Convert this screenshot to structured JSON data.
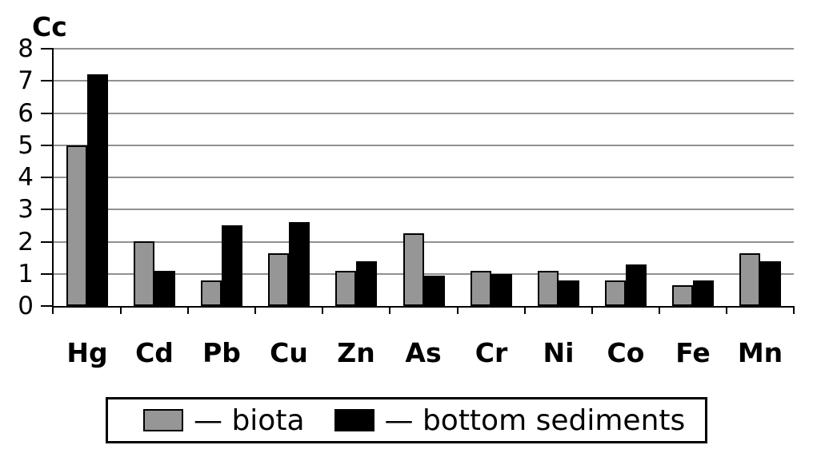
{
  "chart_data": {
    "type": "bar",
    "title": "Cc",
    "ylabel": "Cc",
    "xlabel": "",
    "ylim": [
      0,
      8
    ],
    "ytick_step": 1,
    "ytick_labels": [
      "0",
      "1",
      "2",
      "3",
      "4",
      "5",
      "6",
      "7",
      "8"
    ],
    "grid": "horizontal",
    "legend_position": "bottom",
    "categories": [
      "Hg",
      "Cd",
      "Pb",
      "Cu",
      "Zn",
      "As",
      "Cr",
      "Ni",
      "Co",
      "Fe",
      "Mn"
    ],
    "series": [
      {
        "name": "biota",
        "color": "#969696",
        "values": [
          5.0,
          2.0,
          0.8,
          1.65,
          1.1,
          2.25,
          1.1,
          1.1,
          0.8,
          0.65,
          1.65
        ]
      },
      {
        "name": "bottom sediments",
        "color": "#000000",
        "values": [
          7.2,
          1.1,
          2.5,
          2.6,
          1.4,
          0.95,
          1.0,
          0.8,
          1.3,
          0.8,
          1.4
        ]
      }
    ]
  },
  "legend": {
    "items": [
      {
        "swatch_color": "#969696",
        "label": "— biota"
      },
      {
        "swatch_color": "#000000",
        "label": "— bottom sediments"
      }
    ]
  },
  "colors": {
    "background": "#ffffff",
    "gridline": "#909090",
    "axis": "#000000",
    "bar_border": "#000000",
    "text": "#000000"
  }
}
